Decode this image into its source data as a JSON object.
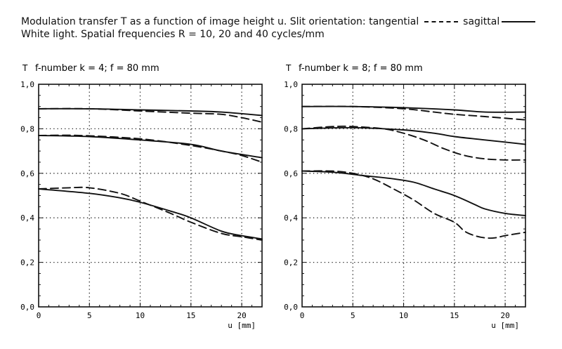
{
  "header": {
    "line1_prefix": "Modulation transfer T as a function of image height u. Slit orientation: tangential",
    "tangential_label": "tangential",
    "sagittal_label": "sagittal",
    "line2": "White light. Spatial frequencies R = 10, 20 and 40 cycles/mm"
  },
  "chart_data": [
    {
      "type": "line",
      "title": "f-number k = 4; f = 80 mm",
      "ylabel": "T",
      "xlabel": "u [mm]",
      "xlim": [
        0,
        22
      ],
      "ylim": [
        0,
        1.0
      ],
      "xticks": [
        "0",
        "5",
        "10",
        "15",
        "20"
      ],
      "yticks": [
        "0,0",
        "0,2",
        "0,4",
        "0,6",
        "0,8",
        "1,0"
      ],
      "grid": true,
      "series": [
        {
          "frequency": 10,
          "orientation": "sagittal",
          "style": "solid",
          "x": [
            0,
            5,
            10,
            15,
            18,
            22
          ],
          "y": [
            0.89,
            0.89,
            0.885,
            0.88,
            0.875,
            0.86
          ]
        },
        {
          "frequency": 10,
          "orientation": "tangential",
          "style": "dashed",
          "x": [
            0,
            5,
            10,
            15,
            18,
            20,
            22
          ],
          "y": [
            0.89,
            0.89,
            0.88,
            0.87,
            0.865,
            0.85,
            0.83
          ]
        },
        {
          "frequency": 20,
          "orientation": "sagittal",
          "style": "solid",
          "x": [
            0,
            5,
            10,
            15,
            18,
            22
          ],
          "y": [
            0.77,
            0.765,
            0.75,
            0.73,
            0.7,
            0.67
          ]
        },
        {
          "frequency": 20,
          "orientation": "tangential",
          "style": "dashed",
          "x": [
            0,
            4,
            10,
            15,
            18,
            20,
            22
          ],
          "y": [
            0.77,
            0.77,
            0.755,
            0.725,
            0.7,
            0.68,
            0.65
          ]
        },
        {
          "frequency": 40,
          "orientation": "sagittal",
          "style": "solid",
          "x": [
            0,
            5,
            8,
            10,
            13,
            15,
            18,
            20,
            22
          ],
          "y": [
            0.53,
            0.51,
            0.49,
            0.47,
            0.43,
            0.4,
            0.34,
            0.32,
            0.305
          ]
        },
        {
          "frequency": 40,
          "orientation": "tangential",
          "style": "dashed",
          "x": [
            0,
            3,
            5,
            8,
            10,
            13,
            15,
            18,
            20,
            22
          ],
          "y": [
            0.53,
            0.535,
            0.535,
            0.51,
            0.475,
            0.42,
            0.38,
            0.33,
            0.315,
            0.3
          ]
        }
      ]
    },
    {
      "type": "line",
      "title": "f-number k = 8; f = 80 mm",
      "ylabel": "T",
      "xlabel": "u [mm]",
      "xlim": [
        0,
        22
      ],
      "ylim": [
        0,
        1.0
      ],
      "xticks": [
        "0",
        "5",
        "10",
        "15",
        "20"
      ],
      "yticks": [
        "0,0",
        "0,2",
        "0,4",
        "0,6",
        "0,8",
        "1,0"
      ],
      "grid": true,
      "series": [
        {
          "frequency": 10,
          "orientation": "sagittal",
          "style": "solid",
          "x": [
            0,
            5,
            10,
            15,
            18,
            22
          ],
          "y": [
            0.9,
            0.9,
            0.895,
            0.885,
            0.875,
            0.875
          ]
        },
        {
          "frequency": 10,
          "orientation": "tangential",
          "style": "dashed",
          "x": [
            0,
            5,
            10,
            13,
            15,
            18,
            22
          ],
          "y": [
            0.9,
            0.9,
            0.89,
            0.875,
            0.865,
            0.855,
            0.84
          ]
        },
        {
          "frequency": 20,
          "orientation": "sagittal",
          "style": "solid",
          "x": [
            0,
            5,
            10,
            13,
            15,
            18,
            22
          ],
          "y": [
            0.8,
            0.805,
            0.795,
            0.78,
            0.765,
            0.75,
            0.73
          ]
        },
        {
          "frequency": 20,
          "orientation": "tangential",
          "style": "dashed",
          "x": [
            0,
            3,
            5,
            8,
            10,
            12,
            14,
            16,
            18,
            20,
            22
          ],
          "y": [
            0.8,
            0.81,
            0.81,
            0.8,
            0.78,
            0.75,
            0.71,
            0.68,
            0.665,
            0.66,
            0.66
          ]
        },
        {
          "frequency": 40,
          "orientation": "sagittal",
          "style": "solid",
          "x": [
            0,
            3,
            6,
            9,
            11,
            13,
            15,
            17,
            18,
            20,
            22
          ],
          "y": [
            0.61,
            0.605,
            0.59,
            0.575,
            0.56,
            0.53,
            0.5,
            0.46,
            0.44,
            0.42,
            0.41
          ]
        },
        {
          "frequency": 40,
          "orientation": "tangential",
          "style": "dashed",
          "x": [
            0,
            3,
            5,
            7,
            9,
            11,
            13,
            15,
            16,
            17,
            18,
            19,
            20,
            22
          ],
          "y": [
            0.61,
            0.61,
            0.6,
            0.575,
            0.53,
            0.48,
            0.42,
            0.38,
            0.34,
            0.32,
            0.31,
            0.31,
            0.32,
            0.335
          ]
        }
      ]
    }
  ]
}
